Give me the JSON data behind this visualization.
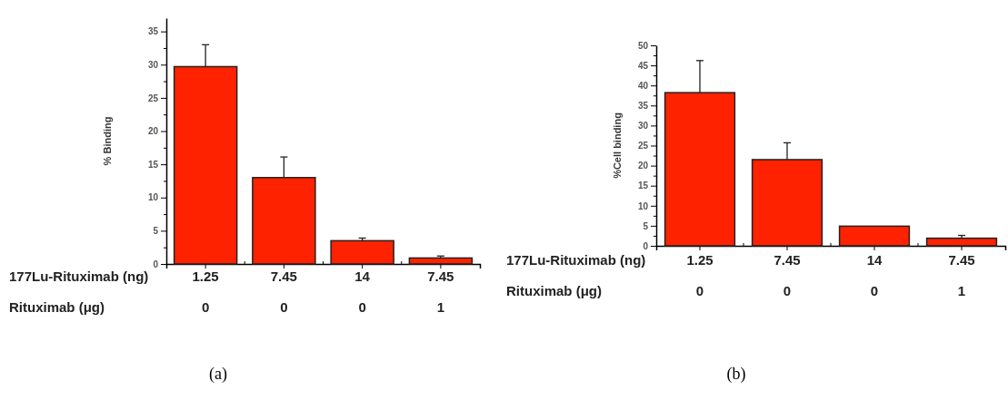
{
  "chart_data": [
    {
      "type": "bar",
      "categories": [
        "1.25\n0",
        "7.45\n0",
        "14\n0",
        "7.45\n1"
      ],
      "values": [
        29.7,
        13,
        3.5,
        0.9
      ],
      "color": "#ff2200",
      "errors": [
        [
          29.7,
          33
        ],
        [
          13,
          16.1
        ],
        [
          3.5,
          3.9
        ],
        [
          0.9,
          1.2
        ]
      ],
      "ylabel": "% Binding",
      "xlabel": "177Lu-Rituximab (ng)\nRituximab (μg)",
      "ylim": [
        0,
        37
      ],
      "yticks": [
        0,
        {
          "value": 2.5,
          "label": null
        },
        5,
        {
          "value": 7.5,
          "label": null
        },
        10,
        {
          "value": 12.5,
          "label": null
        },
        15,
        {
          "value": 17.5,
          "label": null
        },
        20,
        {
          "value": 22.5,
          "label": null
        },
        25,
        {
          "value": 27.5,
          "label": null
        },
        30,
        {
          "value": 32.5,
          "label": null
        },
        35
      ],
      "annotations": [
        "(a)"
      ]
    },
    {
      "type": "bar",
      "categories": [
        "1.25\n0",
        "7.45\n0",
        "14\n0",
        "7.45\n1"
      ],
      "values": [
        38.2,
        21.5,
        4.9,
        1.9
      ],
      "color": "#ff2200",
      "errors": [
        [
          38.2,
          46.2
        ],
        [
          21.5,
          25.7
        ],
        null,
        [
          1.9,
          2.6
        ]
      ],
      "ylabel": "%Cell binding",
      "xlabel": "177Lu-Rituximab (ng)\nRituximab (μg)",
      "ylim": [
        0,
        50
      ],
      "yticks": [
        0,
        {
          "value": 2.5,
          "label": null
        },
        5,
        {
          "value": 7.5,
          "label": null
        },
        10,
        {
          "value": 12.5,
          "label": null
        },
        15,
        {
          "value": 17.5,
          "label": null
        },
        20,
        {
          "value": 22.5,
          "label": null
        },
        25,
        {
          "value": 27.5,
          "label": null
        },
        30,
        {
          "value": 32.5,
          "label": null
        },
        35,
        {
          "value": 37.5,
          "label": null
        },
        40,
        {
          "value": 42.5,
          "label": null
        },
        45,
        {
          "value": 47.5,
          "label": null
        },
        50
      ],
      "annotations": [
        "(b)"
      ]
    }
  ]
}
